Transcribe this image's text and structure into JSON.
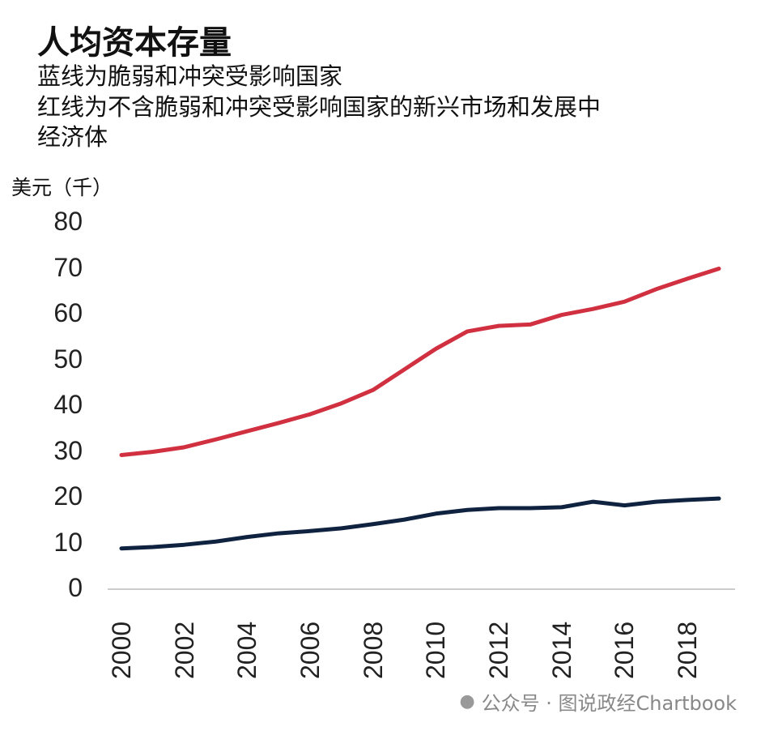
{
  "chart_data": {
    "type": "line",
    "title": "人均资本存量",
    "subtitle_lines": [
      "蓝线为脆弱和冲突受影响国家",
      "红线为不含脆弱和冲突受影响国家的新兴市场和发展中",
      "经济体"
    ],
    "ylabel": "美元（千）",
    "xlabel": "",
    "ylim": [
      0,
      80
    ],
    "yticks": [
      "0",
      "10",
      "20",
      "30",
      "40",
      "50",
      "60",
      "70",
      "80"
    ],
    "xticks": [
      "2000",
      "2002",
      "2004",
      "2006",
      "2008",
      "2010",
      "2012",
      "2014",
      "2016",
      "2018"
    ],
    "x": [
      2000,
      2001,
      2002,
      2003,
      2004,
      2005,
      2006,
      2007,
      2008,
      2009,
      2010,
      2011,
      2012,
      2013,
      2014,
      2015,
      2016,
      2017,
      2018,
      2019
    ],
    "series": [
      {
        "name": "脆弱和冲突受影响国家",
        "color": "#0f2340",
        "values": [
          8.9,
          9.2,
          9.7,
          10.4,
          11.4,
          12.2,
          12.7,
          13.3,
          14.2,
          15.2,
          16.5,
          17.3,
          17.7,
          17.7,
          17.9,
          19.1,
          18.3,
          19.1,
          19.5,
          19.8
        ]
      },
      {
        "name": "不含脆弱和冲突受影响国家的新兴市场和发展中经济体",
        "color": "#d0303f",
        "values": [
          29.3,
          30.0,
          31.0,
          32.7,
          34.5,
          36.3,
          38.2,
          40.6,
          43.5,
          48.0,
          52.5,
          56.3,
          57.5,
          57.8,
          59.9,
          61.2,
          62.8,
          65.5,
          67.8,
          70.0
        ]
      }
    ],
    "grid": false,
    "legend": "none"
  },
  "watermark": "公众号 · 图说政经Chartbook"
}
